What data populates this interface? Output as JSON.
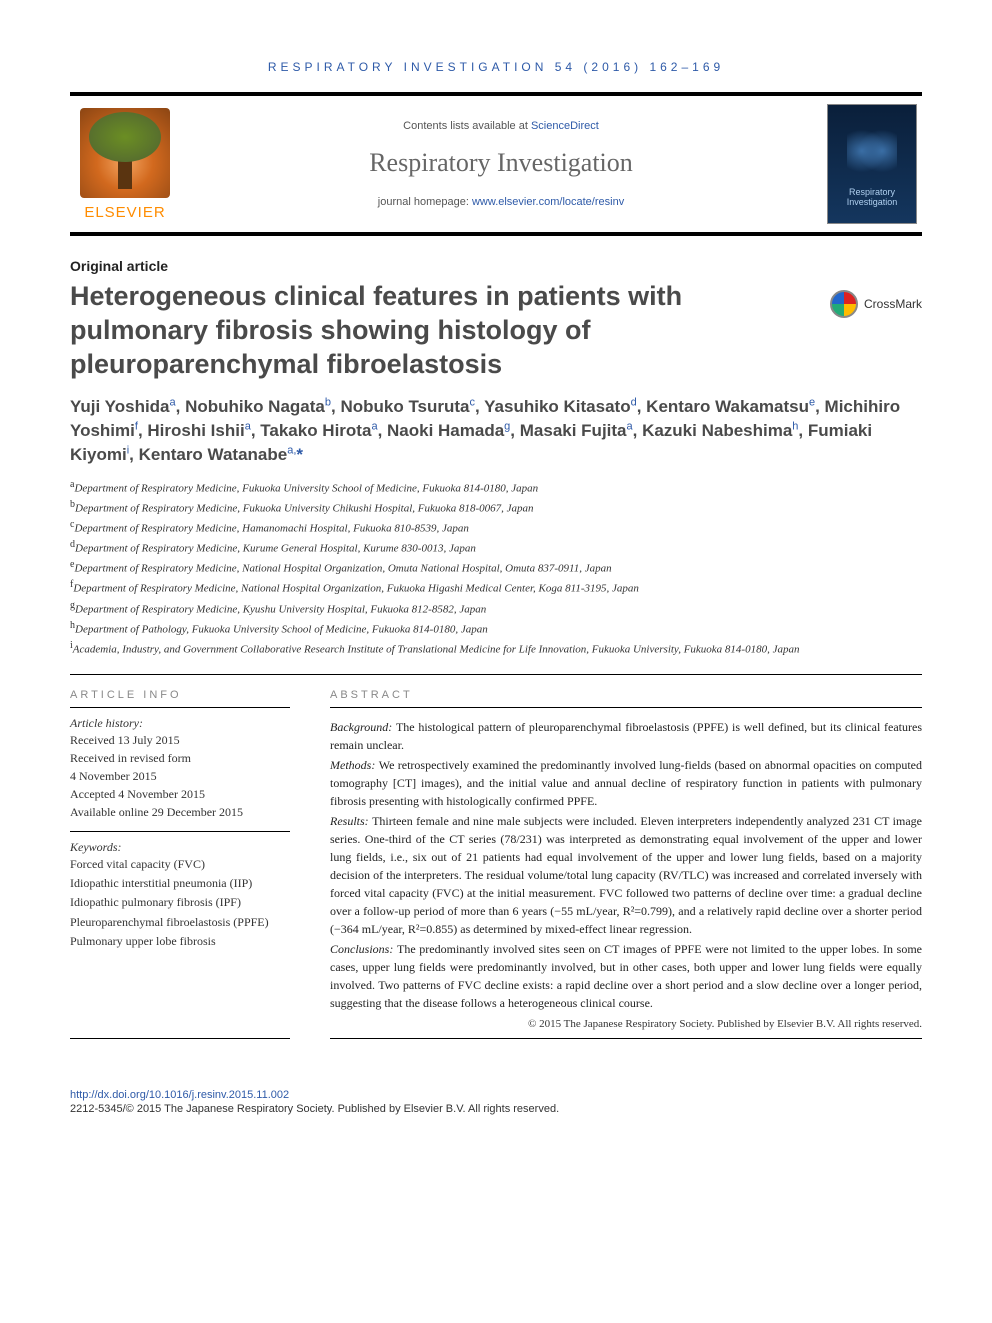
{
  "running_head": "RESPIRATORY INVESTIGATION 54 (2016) 162–169",
  "header": {
    "contents_prefix": "Contents lists available at ",
    "contents_link": "ScienceDirect",
    "journal_name": "Respiratory Investigation",
    "homepage_prefix": "journal homepage: ",
    "homepage_link": "www.elsevier.com/locate/resinv",
    "publisher_logo_text": "ELSEVIER",
    "cover_text": "Respiratory Investigation"
  },
  "article": {
    "type": "Original article",
    "title": "Heterogeneous clinical features in patients with pulmonary fibrosis showing histology of pleuroparenchymal fibroelastosis",
    "crossmark_label": "CrossMark"
  },
  "authors_html": "Yuji Yoshida<sup>a</sup>, Nobuhiko Nagata<sup>b</sup>, Nobuko Tsuruta<sup>c</sup>, Yasuhiko Kitasato<sup>d</sup>, Kentaro Wakamatsu<sup>e</sup>, Michihiro Yoshimi<sup>f</sup>, Hiroshi Ishii<sup>a</sup>, Takako Hirota<sup>a</sup>, Naoki Hamada<sup>g</sup>, Masaki Fujita<sup>a</sup>, Kazuki Nabeshima<sup>h</sup>, Fumiaki Kiyomi<sup>i</sup>, Kentaro Watanabe<sup>a,</sup><span class=\"star\">*</span>",
  "affiliations": [
    {
      "sup": "a",
      "text": "Department of Respiratory Medicine, Fukuoka University School of Medicine, Fukuoka 814-0180, Japan"
    },
    {
      "sup": "b",
      "text": "Department of Respiratory Medicine, Fukuoka University Chikushi Hospital, Fukuoka 818-0067, Japan"
    },
    {
      "sup": "c",
      "text": "Department of Respiratory Medicine, Hamanomachi Hospital, Fukuoka 810-8539, Japan"
    },
    {
      "sup": "d",
      "text": "Department of Respiratory Medicine, Kurume General Hospital, Kurume 830-0013, Japan"
    },
    {
      "sup": "e",
      "text": "Department of Respiratory Medicine, National Hospital Organization, Omuta National Hospital, Omuta 837-0911, Japan"
    },
    {
      "sup": "f",
      "text": "Department of Respiratory Medicine, National Hospital Organization, Fukuoka Higashi Medical Center, Koga 811-3195, Japan"
    },
    {
      "sup": "g",
      "text": "Department of Respiratory Medicine, Kyushu University Hospital, Fukuoka 812-8582, Japan"
    },
    {
      "sup": "h",
      "text": "Department of Pathology, Fukuoka University School of Medicine, Fukuoka 814-0180, Japan"
    },
    {
      "sup": "i",
      "text": "Academia, Industry, and Government Collaborative Research Institute of Translational Medicine for Life Innovation, Fukuoka University, Fukuoka 814-0180, Japan"
    }
  ],
  "article_info": {
    "heading_info": "ARTICLE INFO",
    "history_label": "Article history:",
    "history": [
      "Received 13 July 2015",
      "Received in revised form",
      "4 November 2015",
      "Accepted 4 November 2015",
      "Available online 29 December 2015"
    ],
    "keywords_label": "Keywords:",
    "keywords": [
      "Forced vital capacity (FVC)",
      "Idiopathic interstitial pneumonia (IIP)",
      "Idiopathic pulmonary fibrosis (IPF)",
      "Pleuroparenchymal fibroelastosis (PPFE)",
      "Pulmonary upper lobe fibrosis"
    ]
  },
  "abstract": {
    "heading": "ABSTRACT",
    "sections": [
      {
        "label": "Background:",
        "text": "The histological pattern of pleuroparenchymal fibroelastosis (PPFE) is well defined, but its clinical features remain unclear."
      },
      {
        "label": "Methods:",
        "text": "We retrospectively examined the predominantly involved lung-fields (based on abnormal opacities on computed tomography [CT] images), and the initial value and annual decline of respiratory function in patients with pulmonary fibrosis presenting with histologically confirmed PPFE."
      },
      {
        "label": "Results:",
        "text": "Thirteen female and nine male subjects were included. Eleven interpreters independently analyzed 231 CT image series. One-third of the CT series (78/231) was interpreted as demonstrating equal involvement of the upper and lower lung fields, i.e., six out of 21 patients had equal involvement of the upper and lower lung fields, based on a majority decision of the interpreters. The residual volume/total lung capacity (RV/TLC) was increased and correlated inversely with forced vital capacity (FVC) at the initial measurement. FVC followed two patterns of decline over time: a gradual decline over a follow-up period of more than 6 years (−55 mL/year, R²=0.799), and a relatively rapid decline over a shorter period (−364 mL/year, R²=0.855) as determined by mixed-effect linear regression."
      },
      {
        "label": "Conclusions:",
        "text": "The predominantly involved sites seen on CT images of PPFE were not limited to the upper lobes. In some cases, upper lung fields were predominantly involved, but in other cases, both upper and lower lung fields were equally involved. Two patterns of FVC decline exists: a rapid decline over a short period and a slow decline over a longer period, suggesting that the disease follows a heterogeneous clinical course."
      }
    ],
    "copyright": "© 2015 The Japanese Respiratory Society. Published by Elsevier B.V. All rights reserved."
  },
  "footer": {
    "doi": "http://dx.doi.org/10.1016/j.resinv.2015.11.002",
    "issn_line": "2212-5345/© 2015 The Japanese Respiratory Society. Published by Elsevier B.V. All rights reserved."
  },
  "colors": {
    "link": "#2e5aa8",
    "logo_orange": "#ff8c00",
    "heading_gray": "#4a4a4a"
  }
}
